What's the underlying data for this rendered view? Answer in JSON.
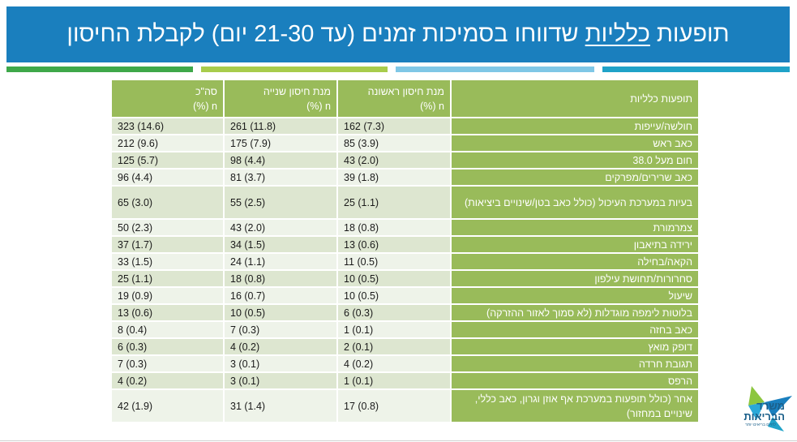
{
  "title": {
    "pre": "תופעות ",
    "underlined": "כלליות",
    "post": " שדווחו בסמיכות זמנים (עד 21-30 יום) לקבלת החיסון"
  },
  "table": {
    "headers": {
      "symptom": "תופעות כלליות",
      "dose1_line1": "מנת חיסון ראשונה",
      "dose1_line2": "n (%)",
      "dose2_line1": "מנת חיסון שנייה",
      "dose2_line2": "n (%)",
      "total_line1": "סה\"כ",
      "total_line2": "n (%)"
    },
    "rows": [
      {
        "symptom": "חולשה/עייפות",
        "dose1": "162 (7.3)",
        "dose2": "261 (11.8)",
        "total": "323 (14.6)"
      },
      {
        "symptom": "כאב ראש",
        "dose1": "85 (3.9)",
        "dose2": "175 (7.9)",
        "total": "212 (9.6)"
      },
      {
        "symptom": "חום מעל 38.0",
        "dose1": "43 (2.0)",
        "dose2": "98 (4.4)",
        "total": "125 (5.7)"
      },
      {
        "symptom": "כאב שרירים/מפרקים",
        "dose1": "39 (1.8)",
        "dose2": "81 (3.7)",
        "total": "96 (4.4)"
      },
      {
        "symptom": "בעיות במערכת העיכול (כולל כאב בטן/שינויים ביציאות)",
        "dose1": "25 (1.1)",
        "dose2": "55 (2.5)",
        "total": "65 (3.0)"
      },
      {
        "symptom": "צמרמורת",
        "dose1": "18 (0.8)",
        "dose2": "43 (2.0)",
        "total": "50 (2.3)"
      },
      {
        "symptom": "ירידה בתיאבון",
        "dose1": "13 (0.6)",
        "dose2": "34 (1.5)",
        "total": "37 (1.7)"
      },
      {
        "symptom": "הקאה/בחילה",
        "dose1": "11 (0.5)",
        "dose2": "24 (1.1)",
        "total": "33 (1.5)"
      },
      {
        "symptom": "סחרורות/תחושת עילפון",
        "dose1": "10 (0.5)",
        "dose2": "18 (0.8)",
        "total": "25 (1.1)"
      },
      {
        "symptom": "שיעול",
        "dose1": "10 (0.5)",
        "dose2": "16 (0.7)",
        "total": "19 (0.9)"
      },
      {
        "symptom": "בלוטות לימפה מוגדלות (לא סמוך לאזור ההזרקה)",
        "dose1": "6 (0.3)",
        "dose2": "10 (0.5)",
        "total": "13 (0.6)"
      },
      {
        "symptom": "כאב בחזה",
        "dose1": "1 (0.1)",
        "dose2": "7 (0.3)",
        "total": "8 (0.4)"
      },
      {
        "symptom": "דופק מואץ",
        "dose1": "2 (0.1)",
        "dose2": "4 (0.2)",
        "total": "6 (0.3)"
      },
      {
        "symptom": "תגובת חרדה",
        "dose1": "4 (0.2)",
        "dose2": "3 (0.1)",
        "total": "7 (0.3)"
      },
      {
        "symptom": "הרפס",
        "dose1": "1 (0.1)",
        "dose2": "3 (0.1)",
        "total": "4 (0.2)"
      },
      {
        "symptom": "אחר (כולל תופעות במערכת אף אוזן וגרון, כאב כללי, שינויים במחזור)",
        "dose1": "17 (0.8)",
        "dose2": "31 (1.4)",
        "total": "42 (1.9)"
      }
    ]
  },
  "logo": {
    "line1": "משרד",
    "line2": "הבריאות",
    "tagline": "לחיים בריאים יותר"
  },
  "colors": {
    "title_bg": "#1a7fbe",
    "header_green": "#99bb5a",
    "row_odd": "#dde6d0",
    "row_even": "#eef3e9"
  }
}
